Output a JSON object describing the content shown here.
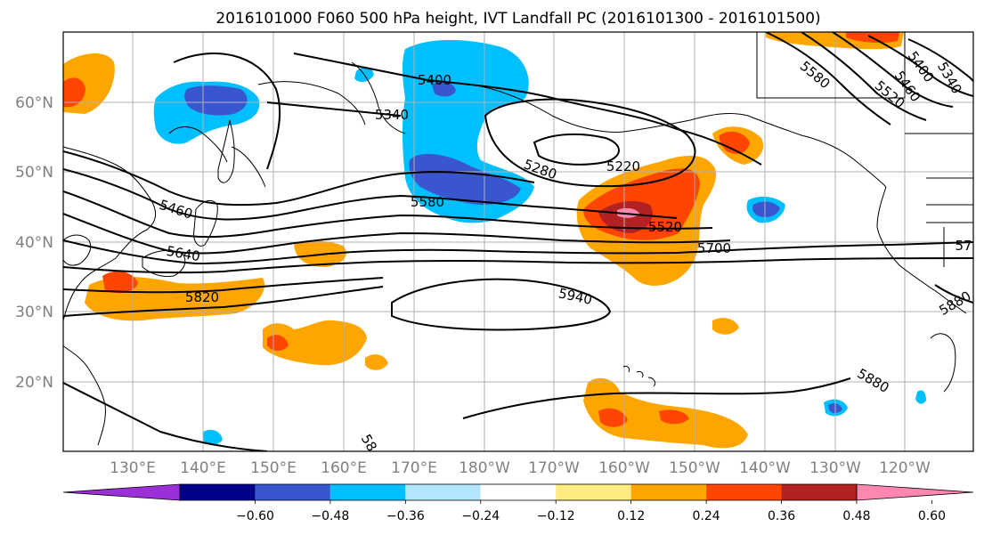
{
  "title": "2016101000 F060 500 hPa height, IVT Landfall PC (2016101300 - 2016101500)",
  "lat_labels": [
    "60°N",
    "50°N",
    "40°N",
    "30°N",
    "20°N"
  ],
  "lon_labels": [
    "130°E",
    "140°E",
    "150°E",
    "160°E",
    "170°E",
    "180°W",
    "170°W",
    "160°W",
    "150°W",
    "140°W",
    "130°W",
    "120°W"
  ],
  "contour_labels": [
    "5400",
    "5340",
    "5280",
    "5220",
    "5460",
    "5580",
    "5520",
    "5640",
    "5700",
    "5820",
    "5940",
    "5880",
    "5580",
    "5520",
    "5460",
    "5400",
    "5340",
    "57",
    "5880",
    "58"
  ],
  "colorbar": {
    "ticks": [
      "−0.60",
      "−0.48",
      "−0.36",
      "−0.24",
      "−0.12",
      "0.12",
      "0.24",
      "0.36",
      "0.48",
      "0.60"
    ],
    "colors": [
      "#9b30d9",
      "#00008b",
      "#3a56cf",
      "#00bfff",
      "#b3e5ff",
      "#ffffff",
      "#ffeb80",
      "#ffa500",
      "#ff4500",
      "#b22222",
      "#ff86b0"
    ]
  }
}
